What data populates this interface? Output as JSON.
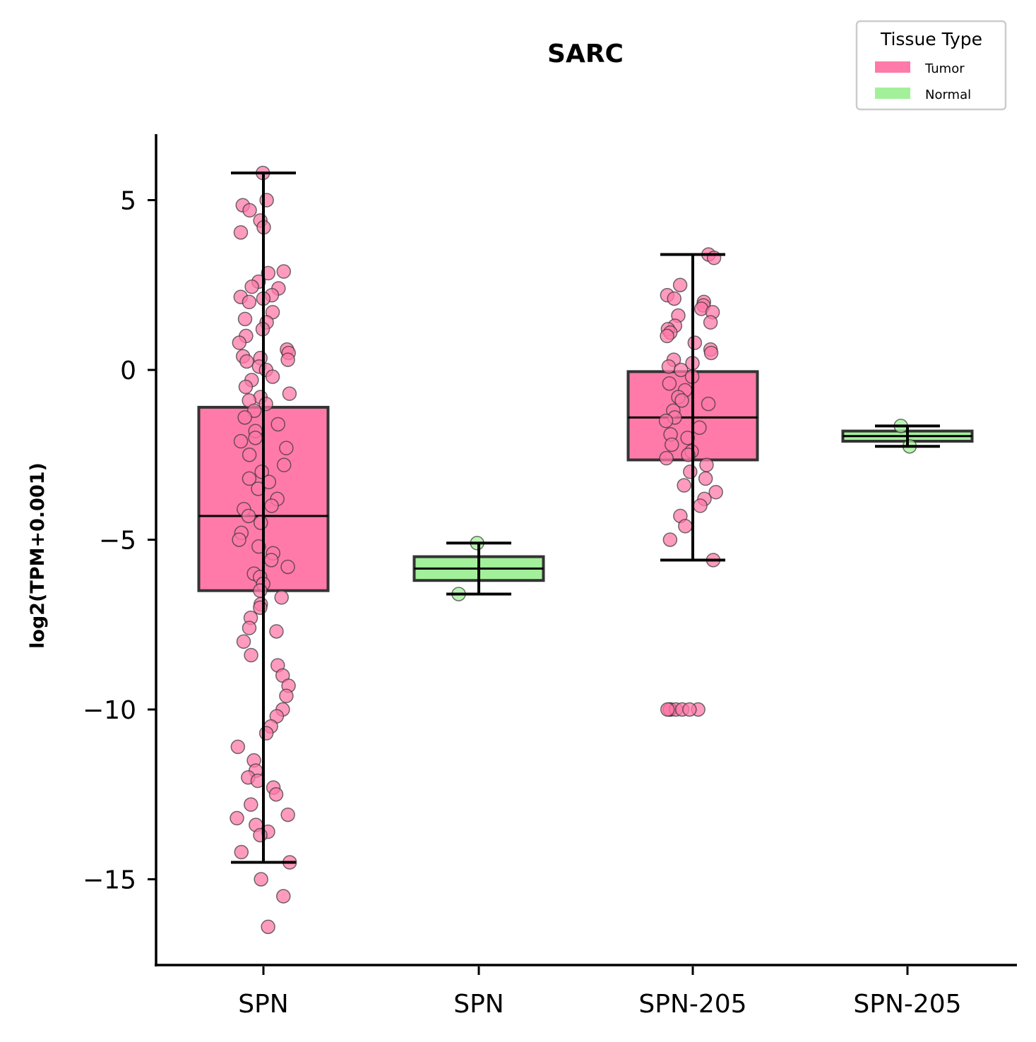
{
  "chart_data": {
    "type": "box",
    "title": "SARC",
    "xlabel": "",
    "ylabel": "log2(TPM+0.001)",
    "ylim": [
      -17.5,
      6.9
    ],
    "yticks": [
      5,
      0,
      -5,
      -10,
      -15
    ],
    "ytick_labels": [
      "5",
      "0",
      "−5",
      "−10",
      "−15"
    ],
    "categories": [
      "SPN",
      "SPN",
      "SPN-205",
      "SPN-205"
    ],
    "grid": false,
    "legend": {
      "title": "Tissue Type",
      "placement": "top-right",
      "entries": [
        {
          "label": "Tumor",
          "color": "#ff7aa8"
        },
        {
          "label": "Normal",
          "color": "#a3f09a"
        }
      ]
    },
    "colors": {
      "Tumor": "#ff7aa8",
      "Normal": "#a3f09a",
      "edge": "#333333",
      "whisker": "#000000"
    },
    "boxes": [
      {
        "category": "SPN",
        "tissue": "Tumor",
        "whisker_low": -14.5,
        "q1": -6.5,
        "median": -4.3,
        "q3": -1.1,
        "whisker_high": 5.8
      },
      {
        "category": "SPN",
        "tissue": "Normal",
        "whisker_low": -6.6,
        "q1": -6.2,
        "median": -5.85,
        "q3": -5.5,
        "whisker_high": -5.1
      },
      {
        "category": "SPN-205",
        "tissue": "Tumor",
        "whisker_low": -5.6,
        "q1": -2.65,
        "median": -1.4,
        "q3": -0.05,
        "whisker_high": 3.4
      },
      {
        "category": "SPN-205",
        "tissue": "Normal",
        "whisker_low": -2.25,
        "q1": -2.1,
        "median": -1.95,
        "q3": -1.8,
        "whisker_high": -1.65
      }
    ],
    "points": [
      {
        "box": 0,
        "y": [
          5.8,
          5.0,
          4.85,
          4.7,
          4.4,
          4.2,
          4.05,
          2.9,
          2.85,
          2.6,
          2.45,
          2.4,
          2.2,
          2.15,
          2.1,
          2.0,
          1.7,
          1.5,
          1.4,
          1.2,
          1.0,
          0.8,
          0.6,
          0.5,
          0.4,
          0.35,
          0.3,
          0.25,
          0.1,
          0.0,
          -0.2,
          -0.3,
          -0.5,
          -0.7,
          -0.8,
          -0.9,
          -1.0,
          -1.2,
          -1.4,
          -1.6,
          -1.8,
          -2.0,
          -2.1,
          -2.3,
          -2.5,
          -2.8,
          -3.0,
          -3.2,
          -3.3,
          -3.5,
          -3.8,
          -4.0,
          -4.1,
          -4.3,
          -4.5,
          -4.8,
          -5.0,
          -5.2,
          -5.4,
          -5.6,
          -5.8,
          -6.0,
          -6.1,
          -6.3,
          -6.5,
          -6.7,
          -6.9,
          -7.0,
          -7.3,
          -7.6,
          -7.7,
          -8.0,
          -8.4,
          -8.7,
          -9.0,
          -9.3,
          -9.6,
          -10.0,
          -10.2,
          -10.5,
          -10.7,
          -11.1,
          -11.5,
          -11.8,
          -12.0,
          -12.1,
          -12.3,
          -12.5,
          -12.8,
          -13.1,
          -13.2,
          -13.4,
          -13.6,
          -13.7,
          -14.2,
          -14.5,
          -15.0,
          -15.5,
          -16.4
        ]
      },
      {
        "box": 1,
        "y": [
          -5.1,
          -6.6
        ]
      },
      {
        "box": 2,
        "y": [
          3.4,
          3.3,
          2.5,
          2.2,
          2.1,
          2.0,
          1.9,
          1.8,
          1.7,
          1.6,
          1.4,
          1.3,
          1.2,
          1.1,
          1.0,
          0.8,
          0.6,
          0.5,
          0.3,
          0.2,
          0.1,
          0.0,
          -0.2,
          -0.4,
          -0.6,
          -0.8,
          -0.9,
          -1.0,
          -1.2,
          -1.4,
          -1.5,
          -1.7,
          -1.9,
          -2.0,
          -2.2,
          -2.4,
          -2.5,
          -2.6,
          -2.8,
          -3.0,
          -3.2,
          -3.4,
          -3.6,
          -3.8,
          -4.0,
          -4.3,
          -4.6,
          -5.0,
          -5.6,
          -10.0,
          -10.0,
          -10.0,
          -10.0,
          -10.0,
          -10.0,
          -10.0
        ]
      },
      {
        "box": 3,
        "y": [
          -1.65,
          -2.25
        ]
      }
    ]
  }
}
